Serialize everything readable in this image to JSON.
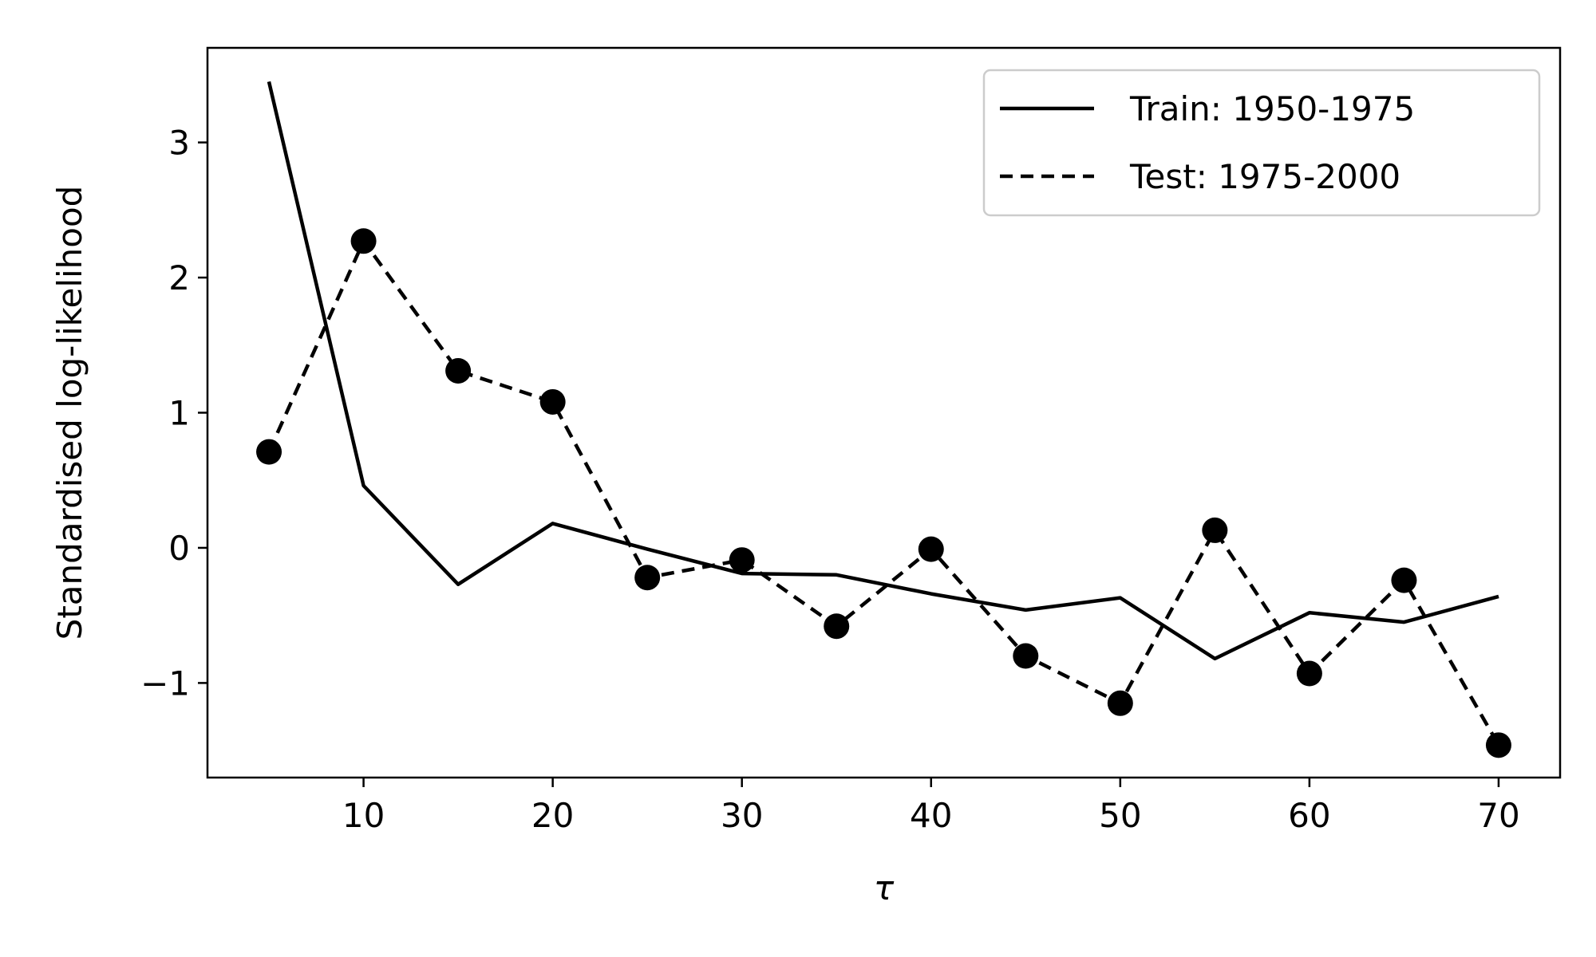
{
  "chart_data": {
    "type": "line",
    "title": "",
    "xlabel": "τ",
    "ylabel": "Standardised log-likelihood",
    "xlim": [
      1.75,
      73.25
    ],
    "ylim": [
      -1.7,
      3.7
    ],
    "xticks": [
      10,
      20,
      30,
      40,
      50,
      60,
      70
    ],
    "yticks": [
      -1,
      0,
      1,
      2,
      3
    ],
    "ytick_labels": [
      "−1",
      "0",
      "1",
      "2",
      "3"
    ],
    "grid": false,
    "legend_position": "top-right",
    "x": [
      5,
      10,
      15,
      20,
      25,
      30,
      35,
      40,
      45,
      50,
      55,
      60,
      65,
      70
    ],
    "series": [
      {
        "name": "Train: 1950-1975",
        "style": "solid",
        "markers": false,
        "color": "#000000",
        "values": [
          3.45,
          0.46,
          -0.27,
          0.18,
          -0.01,
          -0.19,
          -0.2,
          -0.34,
          -0.46,
          -0.37,
          -0.82,
          -0.48,
          -0.55,
          -0.36
        ]
      },
      {
        "name": "Test: 1975-2000",
        "style": "dashed",
        "markers": true,
        "color": "#000000",
        "values": [
          0.71,
          2.27,
          1.31,
          1.08,
          -0.22,
          -0.09,
          -0.58,
          -0.01,
          -0.8,
          -1.15,
          0.13,
          -0.93,
          -0.24,
          -1.46
        ]
      }
    ]
  }
}
